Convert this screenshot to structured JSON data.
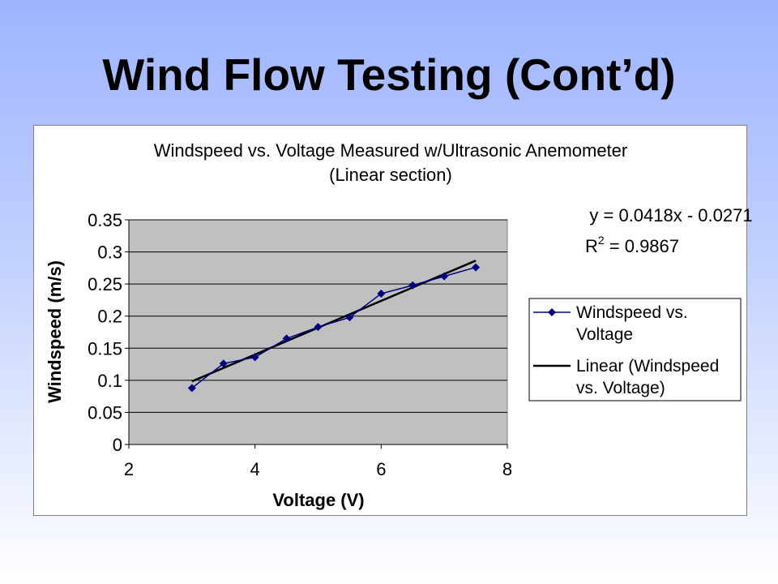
{
  "slide": {
    "title": "Wind Flow Testing (Cont’d)"
  },
  "chart_data": {
    "type": "line",
    "title_line1": "Windspeed vs. Voltage Measured w/Ultrasonic Anemometer",
    "title_line2": "(Linear section)",
    "xlabel": "Voltage (V)",
    "ylabel": "Windspeed (m/s)",
    "xlim": [
      2,
      8
    ],
    "ylim": [
      0,
      0.35
    ],
    "x_ticks": [
      2,
      4,
      6,
      8
    ],
    "x_tick_labels": [
      "2",
      "4",
      "6",
      "8"
    ],
    "y_ticks": [
      0,
      0.05,
      0.1,
      0.15,
      0.2,
      0.25,
      0.3,
      0.35
    ],
    "y_tick_labels": [
      "0",
      "0.05",
      "0.1",
      "0.15",
      "0.2",
      "0.25",
      "0.3",
      "0.35"
    ],
    "plot_background": "#c0c0c0",
    "grid": "horizontal",
    "series": [
      {
        "name": "Windspeed vs. Voltage",
        "color": "#000080",
        "marker": "diamond",
        "x": [
          3,
          3.5,
          4,
          4.5,
          5,
          5.5,
          6,
          6.5,
          7,
          7.5
        ],
        "y": [
          0.088,
          0.126,
          0.136,
          0.165,
          0.183,
          0.198,
          0.235,
          0.248,
          0.262,
          0.276
        ]
      }
    ],
    "trendline": {
      "name": "Linear (Windspeed vs. Voltage)",
      "color": "#000000",
      "slope": 0.0418,
      "intercept": -0.0271,
      "x_range": [
        3,
        7.5
      ],
      "equation_text": "y = 0.0418x - 0.0271",
      "r2_label": "R",
      "r2_superscript": "2",
      "r2_value_text": " = 0.9867"
    },
    "legend": {
      "position": "right",
      "entries": [
        {
          "line1": "Windspeed vs.",
          "line2": "Voltage"
        },
        {
          "line1": "Linear (Windspeed",
          "line2": "vs. Voltage)"
        }
      ]
    }
  }
}
